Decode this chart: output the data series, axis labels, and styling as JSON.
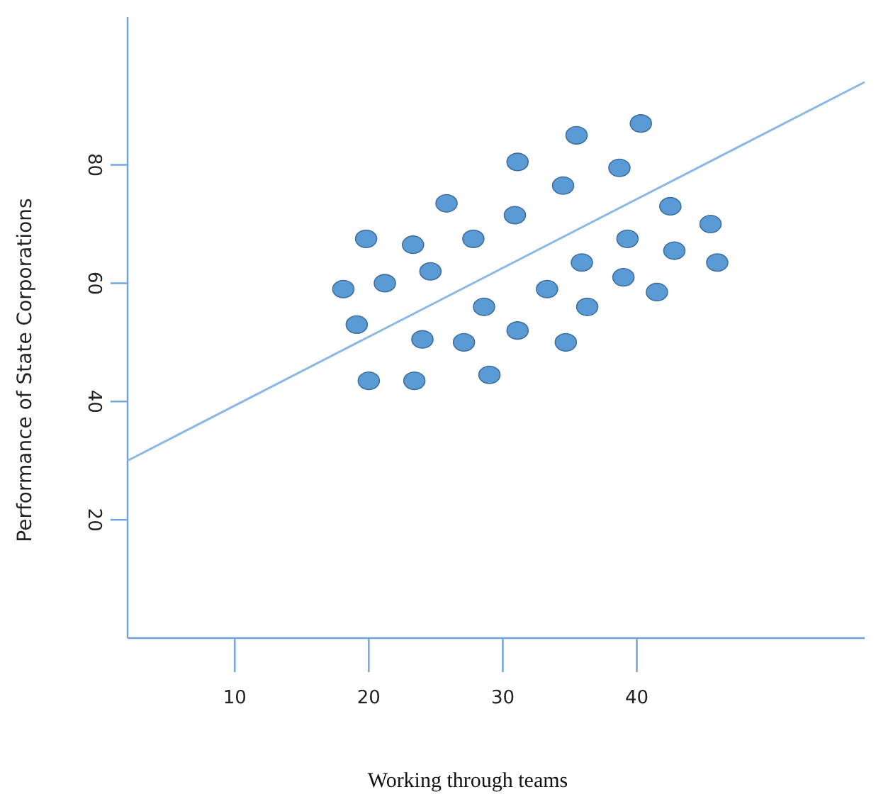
{
  "chart_data": {
    "type": "scatter",
    "xlabel": "Working through teams",
    "ylabel": "Performance of State Corporations",
    "xlim": [
      2,
      57
    ],
    "ylim": [
      0,
      105
    ],
    "xticks": [
      10,
      20,
      30,
      40
    ],
    "yticks": [
      20,
      40,
      60,
      80
    ],
    "grid": false,
    "marker": "circle",
    "series": [
      {
        "color": "#5b9bd5",
        "x": [
          40.3,
          35.5,
          31.1,
          38.7,
          34.5,
          25.8,
          30.9,
          42.5,
          45.5,
          19.8,
          23.3,
          27.8,
          39.3,
          42.8,
          46,
          24.6,
          21.2,
          18.1,
          35.9,
          39,
          33.3,
          41.5,
          28.6,
          36.3,
          19.1,
          24,
          27.1,
          31.1,
          34.7,
          20,
          23.4,
          29
        ],
        "values": [
          87,
          85,
          80.5,
          79.5,
          76.5,
          73.5,
          71.5,
          73,
          70,
          67.5,
          66.5,
          67.5,
          67.5,
          65.5,
          63.5,
          62,
          60,
          59,
          63.5,
          61,
          59,
          58.5,
          56,
          56,
          53,
          50.5,
          50,
          52,
          50,
          43.5,
          43.5,
          44.5
        ]
      },
      {
        "type": "line",
        "color": "#8ab8e6",
        "marker": "none",
        "x": [
          2,
          57
        ],
        "values": [
          30,
          94
        ]
      }
    ]
  }
}
